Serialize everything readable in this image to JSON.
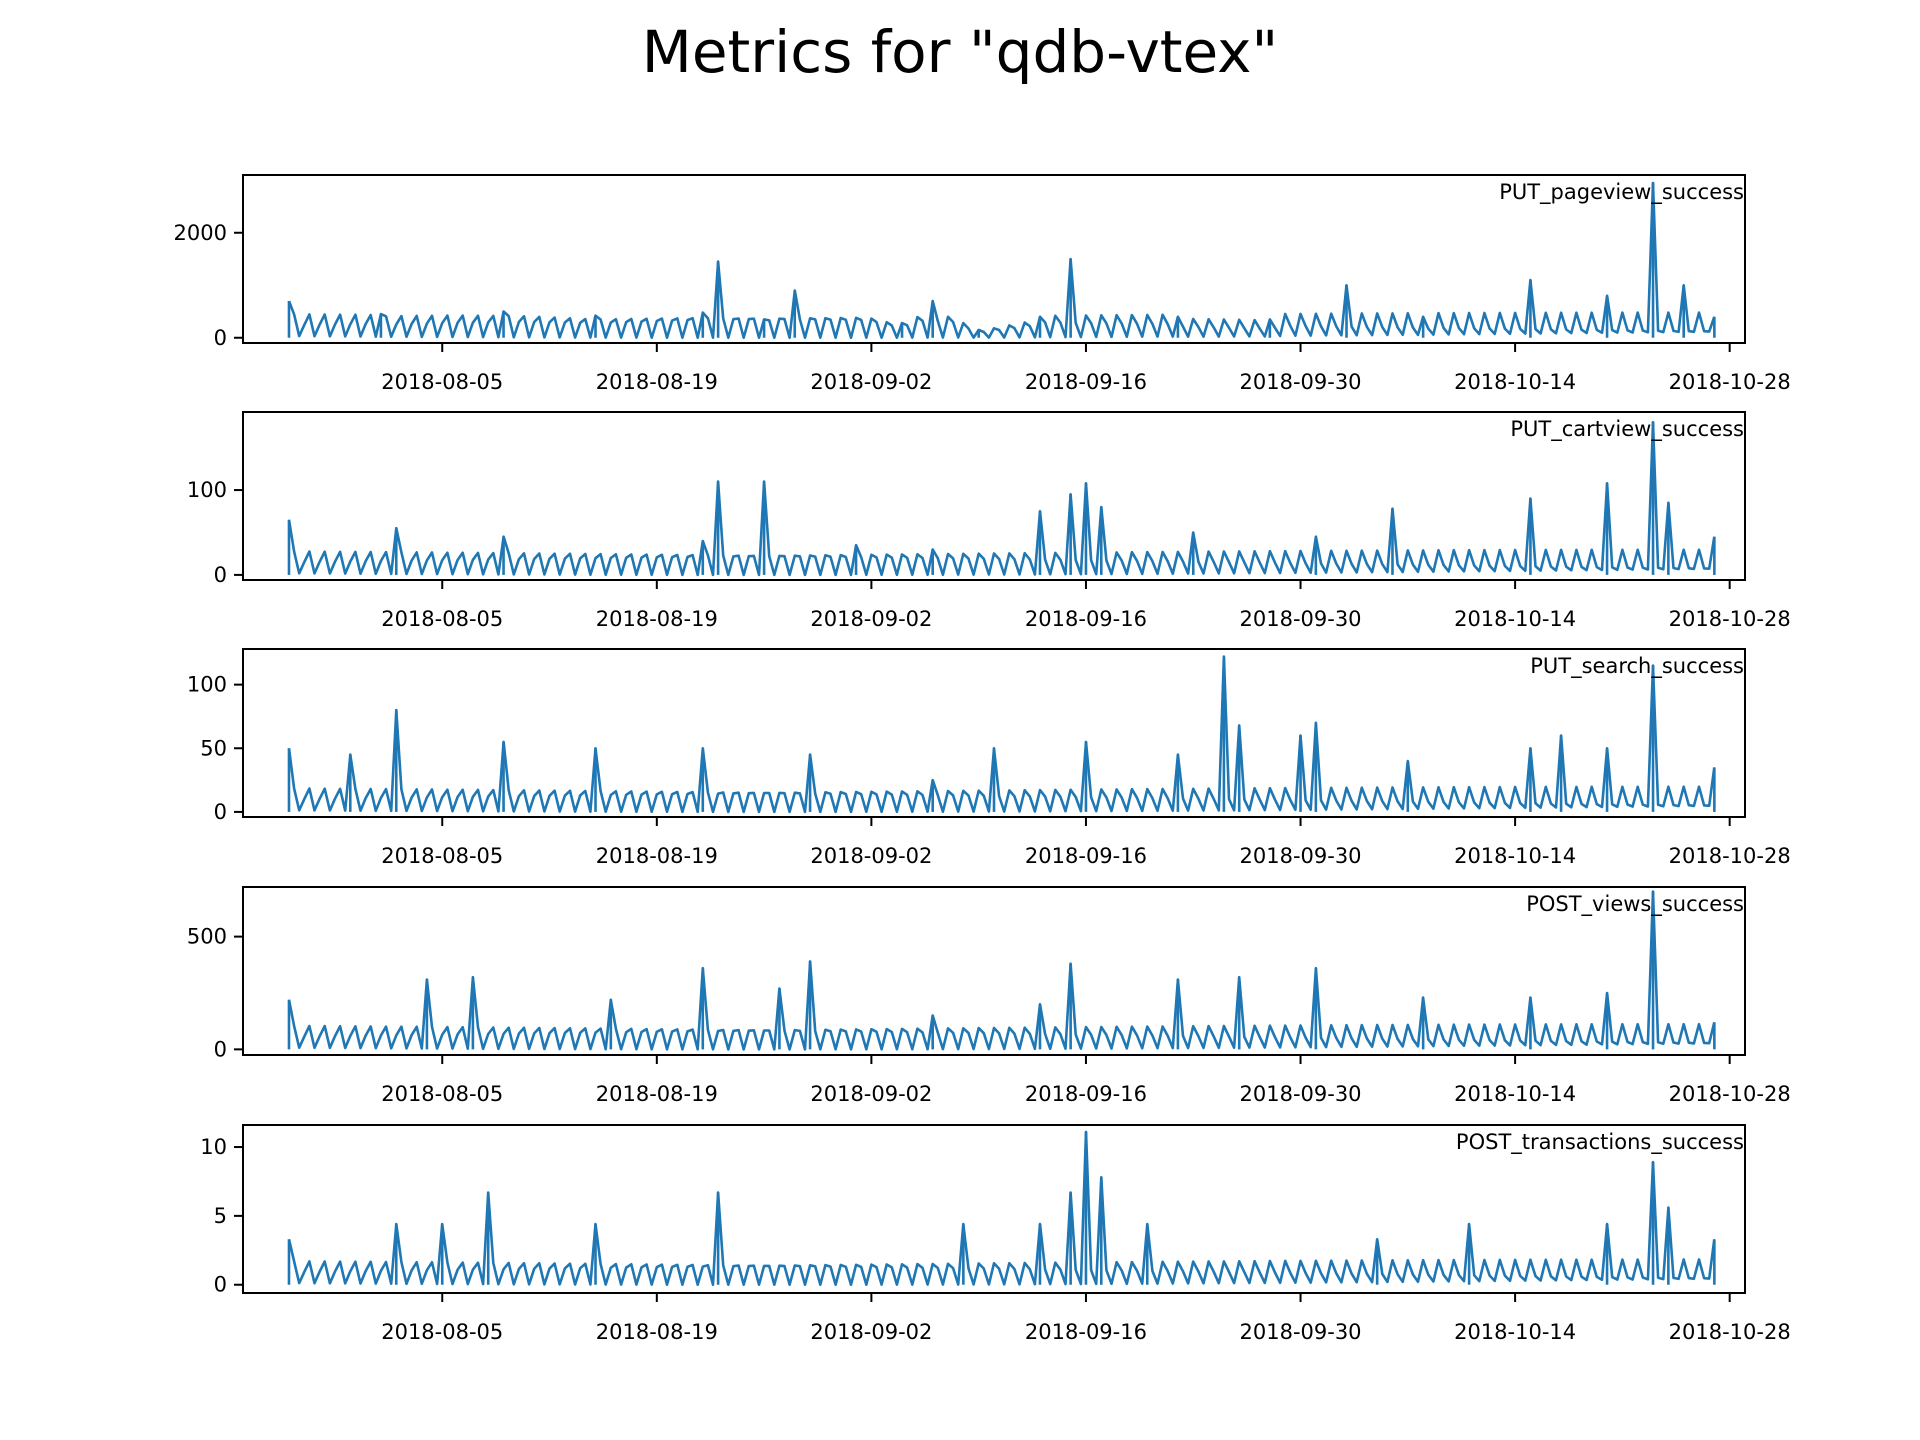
{
  "figure": {
    "title": "Metrics for \"qdb-vtex\""
  },
  "colors": {
    "line": "#1f77b4",
    "axes": "#000000",
    "background": "#ffffff"
  },
  "chart_data": [
    {
      "type": "line",
      "series": [
        {
          "name": "PUT_pageview_success",
          "x": [
            "2018-07-26",
            "2018-08-01",
            "2018-08-09",
            "2018-08-15",
            "2018-08-22",
            "2018-08-23",
            "2018-08-26",
            "2018-08-28",
            "2018-09-04",
            "2018-09-06",
            "2018-09-09",
            "2018-09-13",
            "2018-09-15",
            "2018-09-22",
            "2018-09-28",
            "2018-10-03",
            "2018-10-08",
            "2018-10-15",
            "2018-10-20",
            "2018-10-23",
            "2018-10-25",
            "2018-10-27"
          ],
          "y": [
            700,
            450,
            500,
            420,
            480,
            1450,
            350,
            900,
            280,
            700,
            150,
            400,
            1500,
            400,
            350,
            1000,
            400,
            1100,
            800,
            2950,
            1000,
            400
          ]
        }
      ],
      "x_ticks": [
        "2018-08-05",
        "2018-08-19",
        "2018-09-02",
        "2018-09-16",
        "2018-09-30",
        "2018-10-14",
        "2018-10-28"
      ],
      "y_ticks": [
        "0",
        "2000"
      ],
      "ylim": [
        -100,
        3100
      ],
      "xlim": [
        "2018-07-23",
        "2018-10-29"
      ],
      "legend": "PUT_pageview_success",
      "legend_position": "top-right"
    },
    {
      "type": "line",
      "series": [
        {
          "name": "PUT_cartview_success",
          "x": [
            "2018-07-26",
            "2018-08-02",
            "2018-08-09",
            "2018-08-22",
            "2018-08-23",
            "2018-08-26",
            "2018-09-01",
            "2018-09-06",
            "2018-09-13",
            "2018-09-15",
            "2018-09-16",
            "2018-09-17",
            "2018-09-23",
            "2018-10-01",
            "2018-10-06",
            "2018-10-15",
            "2018-10-20",
            "2018-10-23",
            "2018-10-24",
            "2018-10-27"
          ],
          "y": [
            65,
            55,
            45,
            40,
            110,
            110,
            35,
            30,
            75,
            95,
            108,
            80,
            50,
            45,
            78,
            90,
            108,
            180,
            85,
            45
          ]
        }
      ],
      "x_ticks": [
        "2018-08-05",
        "2018-08-19",
        "2018-09-02",
        "2018-09-16",
        "2018-09-30",
        "2018-10-14",
        "2018-10-28"
      ],
      "y_ticks": [
        "0",
        "100"
      ],
      "ylim": [
        -6,
        192
      ],
      "xlim": [
        "2018-07-23",
        "2018-10-29"
      ],
      "legend": "PUT_cartview_success",
      "legend_position": "top-right"
    },
    {
      "type": "line",
      "series": [
        {
          "name": "PUT_search_success",
          "x": [
            "2018-07-26",
            "2018-07-30",
            "2018-08-02",
            "2018-08-09",
            "2018-08-15",
            "2018-08-22",
            "2018-08-29",
            "2018-09-06",
            "2018-09-10",
            "2018-09-16",
            "2018-09-22",
            "2018-09-25",
            "2018-09-26",
            "2018-09-30",
            "2018-10-01",
            "2018-10-07",
            "2018-10-15",
            "2018-10-17",
            "2018-10-20",
            "2018-10-23",
            "2018-10-27"
          ],
          "y": [
            50,
            45,
            80,
            55,
            50,
            50,
            45,
            25,
            50,
            55,
            45,
            122,
            68,
            60,
            70,
            40,
            50,
            60,
            50,
            115,
            35
          ]
        }
      ],
      "x_ticks": [
        "2018-08-05",
        "2018-08-19",
        "2018-09-02",
        "2018-09-16",
        "2018-09-30",
        "2018-10-14",
        "2018-10-28"
      ],
      "y_ticks": [
        "0",
        "50",
        "100"
      ],
      "ylim": [
        -4,
        128
      ],
      "xlim": [
        "2018-07-23",
        "2018-10-29"
      ],
      "legend": "PUT_search_success",
      "legend_position": "top-right"
    },
    {
      "type": "line",
      "series": [
        {
          "name": "POST_views_success",
          "x": [
            "2018-07-26",
            "2018-08-04",
            "2018-08-07",
            "2018-08-16",
            "2018-08-22",
            "2018-08-27",
            "2018-08-29",
            "2018-09-06",
            "2018-09-13",
            "2018-09-15",
            "2018-09-22",
            "2018-09-26",
            "2018-10-01",
            "2018-10-08",
            "2018-10-15",
            "2018-10-20",
            "2018-10-23",
            "2018-10-27"
          ],
          "y": [
            220,
            310,
            320,
            220,
            360,
            270,
            390,
            150,
            200,
            380,
            310,
            320,
            360,
            230,
            230,
            250,
            700,
            120
          ]
        }
      ],
      "x_ticks": [
        "2018-08-05",
        "2018-08-19",
        "2018-09-02",
        "2018-09-16",
        "2018-09-30",
        "2018-10-14",
        "2018-10-28"
      ],
      "y_ticks": [
        "0",
        "500"
      ],
      "ylim": [
        -25,
        720
      ],
      "xlim": [
        "2018-07-23",
        "2018-10-29"
      ],
      "legend": "POST_views_success",
      "legend_position": "top-right"
    },
    {
      "type": "line",
      "series": [
        {
          "name": "POST_transactions_success",
          "x": [
            "2018-07-26",
            "2018-08-02",
            "2018-08-05",
            "2018-08-08",
            "2018-08-15",
            "2018-08-23",
            "2018-09-08",
            "2018-09-13",
            "2018-09-15",
            "2018-09-16",
            "2018-09-17",
            "2018-09-20",
            "2018-10-05",
            "2018-10-11",
            "2018-10-20",
            "2018-10-23",
            "2018-10-24",
            "2018-10-27"
          ],
          "y": [
            3.3,
            4.4,
            4.4,
            6.7,
            4.4,
            6.7,
            4.4,
            4.4,
            6.7,
            11.1,
            7.8,
            4.4,
            3.3,
            4.4,
            4.4,
            8.9,
            5.6,
            3.3
          ]
        }
      ],
      "x_ticks": [
        "2018-08-05",
        "2018-08-19",
        "2018-09-02",
        "2018-09-16",
        "2018-09-30",
        "2018-10-14",
        "2018-10-28"
      ],
      "y_ticks": [
        "0",
        "5",
        "10"
      ],
      "ylim": [
        -0.6,
        11.6
      ],
      "xlim": [
        "2018-07-23",
        "2018-10-29"
      ],
      "legend": "POST_transactions_success",
      "legend_position": "top-right"
    }
  ]
}
